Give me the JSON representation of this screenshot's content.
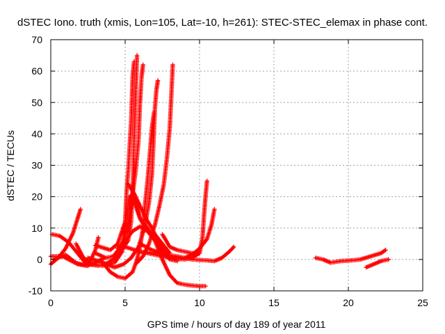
{
  "chart_data": {
    "type": "scatter",
    "title": "dSTEC Iono. truth (xmis, Lon=105, Lat=-10, h=261): STEC-STEC_elemax in phase cont.",
    "xlabel": "GPS time / hours of day 189 of year 2011",
    "ylabel": "dSTEC  / TECUs",
    "xlim": [
      0,
      25
    ],
    "ylim": [
      -10,
      70
    ],
    "xticks": [
      0,
      5,
      10,
      15,
      20,
      25
    ],
    "yticks": [
      -10,
      0,
      10,
      20,
      30,
      40,
      50,
      60,
      70
    ],
    "grid": true,
    "legend": "none",
    "marker": "plus",
    "color": "#ff0000",
    "series": [
      {
        "points": [
          [
            0.0,
            -1.5
          ],
          [
            0.5,
            0.5
          ],
          [
            1.0,
            3.5
          ],
          [
            1.5,
            8.5
          ],
          [
            2.0,
            16.0
          ]
        ]
      },
      {
        "points": [
          [
            0.1,
            8.0
          ],
          [
            0.6,
            7.5
          ],
          [
            1.2,
            5.5
          ],
          [
            1.8,
            2.0
          ],
          [
            2.4,
            -1.5
          ],
          [
            3.2,
            -2.0
          ]
        ]
      },
      {
        "points": [
          [
            0.0,
            1.0
          ],
          [
            0.8,
            1.0
          ],
          [
            1.6,
            -1.0
          ],
          [
            2.4,
            -2.0
          ],
          [
            3.0,
            -1.0
          ],
          [
            3.6,
            0.5
          ]
        ]
      },
      {
        "points": [
          [
            0.2,
            0.0
          ],
          [
            1.0,
            1.5
          ],
          [
            1.8,
            -1.5
          ],
          [
            2.5,
            -2.0
          ],
          [
            3.0,
            3.0
          ],
          [
            3.2,
            7.0
          ]
        ]
      },
      {
        "points": [
          [
            1.7,
            5.0
          ],
          [
            2.2,
            0.5
          ],
          [
            2.8,
            -1.5
          ],
          [
            3.5,
            -2.0
          ],
          [
            4.2,
            0.0
          ],
          [
            4.7,
            2.5
          ],
          [
            5.2,
            6.0
          ],
          [
            5.4,
            12.0
          ],
          [
            5.5,
            22.0
          ],
          [
            5.6,
            38.0
          ],
          [
            5.7,
            52.0
          ],
          [
            5.8,
            65.0
          ]
        ]
      },
      {
        "points": [
          [
            2.5,
            0.5
          ],
          [
            3.2,
            -0.5
          ],
          [
            3.8,
            -1.5
          ],
          [
            4.3,
            -1.0
          ],
          [
            4.8,
            2.5
          ],
          [
            5.0,
            12.0
          ],
          [
            5.1,
            22.0
          ],
          [
            5.2,
            28.0
          ],
          [
            5.3,
            36.0
          ],
          [
            5.4,
            44.0
          ],
          [
            5.5,
            58.0
          ],
          [
            5.6,
            63.0
          ]
        ]
      },
      {
        "points": [
          [
            3.0,
            2.0
          ],
          [
            3.7,
            0.5
          ],
          [
            4.2,
            1.0
          ],
          [
            4.7,
            4.0
          ],
          [
            5.1,
            9.0
          ],
          [
            5.4,
            17.0
          ],
          [
            5.7,
            28.0
          ],
          [
            5.9,
            38.0
          ],
          [
            6.0,
            50.0
          ],
          [
            6.1,
            58.0
          ],
          [
            6.2,
            62.0
          ]
        ]
      },
      {
        "points": [
          [
            3.5,
            -1.0
          ],
          [
            4.0,
            -4.0
          ],
          [
            4.5,
            -5.5
          ],
          [
            5.0,
            -6.0
          ],
          [
            5.5,
            -4.0
          ],
          [
            5.8,
            0.0
          ],
          [
            6.0,
            4.0
          ],
          [
            6.2,
            10.0
          ],
          [
            6.3,
            16.0
          ],
          [
            6.5,
            25.0
          ],
          [
            6.7,
            36.0
          ],
          [
            6.8,
            42.0
          ],
          [
            6.95,
            47.0
          ]
        ]
      },
      {
        "points": [
          [
            3.7,
            -1.5
          ],
          [
            4.3,
            -2.5
          ],
          [
            4.9,
            -1.5
          ],
          [
            5.4,
            0.5
          ],
          [
            5.9,
            4.0
          ],
          [
            6.3,
            10.0
          ],
          [
            6.6,
            18.0
          ],
          [
            6.8,
            27.0
          ],
          [
            6.9,
            37.0
          ],
          [
            7.0,
            48.0
          ],
          [
            7.1,
            54.0
          ],
          [
            7.2,
            57.0
          ]
        ]
      },
      {
        "points": [
          [
            3.0,
            4.5
          ],
          [
            4.0,
            3.0
          ],
          [
            4.5,
            5.0
          ],
          [
            5.0,
            12.0
          ],
          [
            5.3,
            20.0
          ],
          [
            5.6,
            21.0
          ],
          [
            6.0,
            13.0
          ],
          [
            6.5,
            9.0
          ],
          [
            7.0,
            8.0
          ],
          [
            7.5,
            5.0
          ],
          [
            8.0,
            2.0
          ]
        ]
      },
      {
        "points": [
          [
            4.5,
            3.5
          ],
          [
            5.0,
            6.0
          ],
          [
            5.5,
            9.0
          ],
          [
            6.0,
            10.5
          ],
          [
            6.5,
            9.0
          ],
          [
            7.0,
            6.0
          ],
          [
            7.5,
            2.5
          ],
          [
            8.0,
            0.0
          ],
          [
            8.5,
            -0.5
          ]
        ]
      },
      {
        "points": [
          [
            5.2,
            24.0
          ],
          [
            5.6,
            21.0
          ],
          [
            6.0,
            17.0
          ],
          [
            6.4,
            13.0
          ],
          [
            6.8,
            10.0
          ],
          [
            7.2,
            6.0
          ],
          [
            7.6,
            3.0
          ],
          [
            8.0,
            1.0
          ]
        ]
      },
      {
        "points": [
          [
            5.8,
            -1.0
          ],
          [
            6.2,
            1.0
          ],
          [
            6.6,
            5.0
          ],
          [
            7.0,
            11.0
          ],
          [
            7.3,
            17.0
          ],
          [
            7.6,
            24.0
          ],
          [
            7.8,
            32.0
          ],
          [
            8.0,
            42.0
          ],
          [
            8.1,
            52.0
          ],
          [
            8.2,
            62.0
          ]
        ]
      },
      {
        "points": [
          [
            5.5,
            20.0
          ],
          [
            6.0,
            13.0
          ],
          [
            6.5,
            10.0
          ],
          [
            7.0,
            6.0
          ],
          [
            7.5,
            0.0
          ],
          [
            8.0,
            -5.0
          ],
          [
            8.5,
            -7.5
          ],
          [
            9.0,
            -8.0
          ],
          [
            9.5,
            -8.3
          ],
          [
            10.0,
            -8.5
          ],
          [
            10.4,
            -8.5
          ]
        ]
      },
      {
        "points": [
          [
            6.0,
            5.0
          ],
          [
            6.8,
            3.0
          ],
          [
            7.5,
            2.0
          ],
          [
            8.0,
            1.0
          ],
          [
            8.5,
            0.3
          ],
          [
            9.0,
            0.5
          ],
          [
            9.5,
            1.5
          ],
          [
            10.0,
            3.5
          ],
          [
            10.5,
            6.5
          ],
          [
            10.8,
            11.0
          ],
          [
            11.0,
            16.0
          ]
        ]
      },
      {
        "points": [
          [
            5.0,
            4.0
          ],
          [
            6.0,
            2.5
          ],
          [
            7.0,
            1.5
          ],
          [
            8.0,
            0.5
          ],
          [
            9.0,
            0.0
          ],
          [
            9.5,
            0.5
          ],
          [
            10.0,
            2.0
          ],
          [
            10.2,
            7.0
          ],
          [
            10.3,
            14.0
          ],
          [
            10.4,
            20.0
          ],
          [
            10.5,
            25.0
          ]
        ]
      },
      {
        "points": [
          [
            6.0,
            2.5
          ],
          [
            7.0,
            2.0
          ],
          [
            7.8,
            1.5
          ],
          [
            8.5,
            1.0
          ],
          [
            9.5,
            0.0
          ],
          [
            10.5,
            -0.3
          ],
          [
            11.0,
            -0.5
          ],
          [
            11.5,
            0.5
          ],
          [
            12.0,
            2.5
          ],
          [
            12.3,
            4.0
          ]
        ]
      },
      {
        "points": [
          [
            7.5,
            8.0
          ],
          [
            8.0,
            4.0
          ],
          [
            8.5,
            3.0
          ],
          [
            9.0,
            2.5
          ],
          [
            9.5,
            2.0
          ],
          [
            10.0,
            2.0
          ]
        ]
      },
      {
        "points": [
          [
            17.8,
            0.5
          ],
          [
            18.3,
            0.0
          ],
          [
            18.8,
            -1.0
          ],
          [
            19.5,
            -0.5
          ],
          [
            20.2,
            -0.3
          ],
          [
            20.8,
            0.0
          ],
          [
            21.5,
            1.0
          ],
          [
            22.2,
            2.0
          ],
          [
            22.5,
            3.0
          ]
        ]
      },
      {
        "points": [
          [
            21.2,
            -2.5
          ],
          [
            21.7,
            -1.5
          ],
          [
            22.2,
            -0.5
          ],
          [
            22.7,
            0.0
          ]
        ]
      }
    ]
  }
}
